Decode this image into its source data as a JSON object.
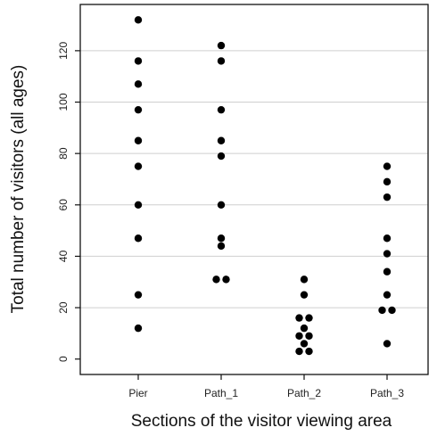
{
  "chart_data": {
    "type": "scatter",
    "title": "",
    "xlabel": "Sections of the visitor viewing area",
    "ylabel": "Total number of visitors (all ages)",
    "categories": [
      "Pier",
      "Path_1",
      "Path_2",
      "Path_3"
    ],
    "ylim": [
      -6,
      138
    ],
    "yticks": [
      0,
      20,
      40,
      60,
      80,
      100,
      120
    ],
    "grid": "horizontal",
    "legend": "none",
    "colors": {
      "point": "#000000",
      "grid": "#cfcfcf",
      "axis": "#111111"
    },
    "series": [
      {
        "category": "Pier",
        "values": [
          132,
          116,
          107,
          97,
          85,
          75,
          60,
          47,
          25,
          12
        ]
      },
      {
        "category": "Path_1",
        "values": [
          122,
          116,
          97,
          85,
          79,
          60,
          47,
          44,
          31,
          31
        ]
      },
      {
        "category": "Path_2",
        "values": [
          31,
          25,
          16,
          16,
          12,
          9,
          9,
          6,
          3,
          3
        ]
      },
      {
        "category": "Path_3",
        "values": [
          75,
          69,
          63,
          47,
          41,
          34,
          25,
          19,
          19,
          6
        ]
      }
    ]
  }
}
